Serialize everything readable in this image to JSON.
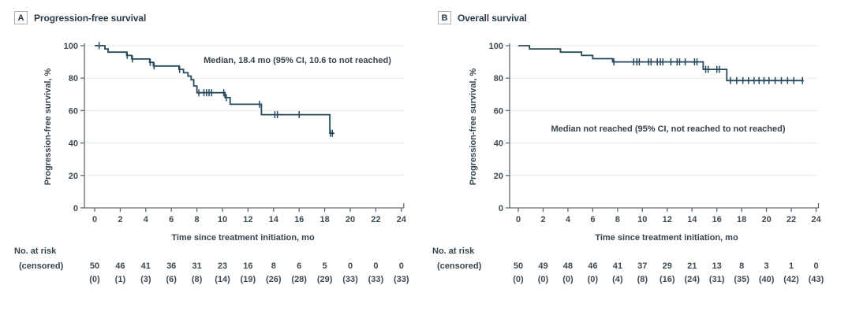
{
  "chart_data": [
    {
      "type": "line",
      "km_step": true,
      "panel_label": "A",
      "title": "Progression-free survival",
      "annotation": "Median, 18.4 mo (95% CI, 10.6 to not reached)",
      "xlabel": "Time since treatment initiation, mo",
      "ylabel": "Progression-free survival, %",
      "xlim": [
        0,
        24
      ],
      "ylim": [
        0,
        100
      ],
      "xticks": [
        0,
        2,
        4,
        6,
        8,
        10,
        12,
        14,
        16,
        18,
        20,
        22,
        24
      ],
      "yticks": [
        0,
        20,
        40,
        60,
        80,
        100
      ],
      "grid": true,
      "legend_position": "none",
      "line_color": "#26485c",
      "steps": [
        [
          0,
          100
        ],
        [
          0.8,
          100
        ],
        [
          0.8,
          98
        ],
        [
          1.05,
          98
        ],
        [
          1.05,
          96
        ],
        [
          2.5,
          96
        ],
        [
          2.5,
          94
        ],
        [
          2.9,
          94
        ],
        [
          2.9,
          91.8
        ],
        [
          4.3,
          91.8
        ],
        [
          4.3,
          89.7
        ],
        [
          4.6,
          89.7
        ],
        [
          4.6,
          87.5
        ],
        [
          6.6,
          87.5
        ],
        [
          6.6,
          85.4
        ],
        [
          6.95,
          85.4
        ],
        [
          6.95,
          83.3
        ],
        [
          7.3,
          83.3
        ],
        [
          7.3,
          81.2
        ],
        [
          7.55,
          81.2
        ],
        [
          7.55,
          79
        ],
        [
          7.75,
          79
        ],
        [
          7.75,
          75.2
        ],
        [
          8.0,
          75.2
        ],
        [
          8.0,
          71
        ],
        [
          10.2,
          71
        ],
        [
          10.2,
          68
        ],
        [
          10.6,
          68
        ],
        [
          10.6,
          63.9
        ],
        [
          13.05,
          63.9
        ],
        [
          13.05,
          57.5
        ],
        [
          18.4,
          57.5
        ],
        [
          18.4,
          46
        ],
        [
          18.75,
          46
        ]
      ],
      "censor_marks": [
        [
          0.35,
          100
        ],
        [
          2.55,
          94
        ],
        [
          2.95,
          91.8
        ],
        [
          4.35,
          89.7
        ],
        [
          4.65,
          87.5
        ],
        [
          6.65,
          85.4
        ],
        [
          8.15,
          71
        ],
        [
          8.55,
          71
        ],
        [
          8.75,
          71
        ],
        [
          8.95,
          71
        ],
        [
          9.15,
          71
        ],
        [
          10.1,
          71
        ],
        [
          10.3,
          68
        ],
        [
          12.9,
          63.9
        ],
        [
          14.1,
          57.5
        ],
        [
          14.3,
          57.5
        ],
        [
          16.0,
          57.5
        ],
        [
          18.45,
          46
        ],
        [
          18.6,
          46
        ]
      ],
      "risk_header": "No. at risk",
      "censored_header": "(censored)",
      "risk_times": [
        0,
        2,
        4,
        6,
        8,
        10,
        12,
        14,
        16,
        18,
        20,
        22,
        24
      ],
      "at_risk": [
        "50",
        "46",
        "41",
        "36",
        "31",
        "23",
        "16",
        "8",
        "6",
        "5",
        "0",
        "0",
        "0"
      ],
      "censored_counts": [
        "(0)",
        "(1)",
        "(3)",
        "(6)",
        "(8)",
        "(14)",
        "(19)",
        "(26)",
        "(28)",
        "(29)",
        "(33)",
        "(33)",
        "(33)"
      ]
    },
    {
      "type": "line",
      "km_step": true,
      "panel_label": "B",
      "title": "Overall survival",
      "annotation": "Median not reached (95% CI, not reached to not reached)",
      "xlabel": "Time since treatment initiation, mo",
      "ylabel": "Progression-free survival, %",
      "xlim": [
        0,
        24
      ],
      "ylim": [
        0,
        100
      ],
      "xticks": [
        0,
        2,
        4,
        6,
        8,
        10,
        12,
        14,
        16,
        18,
        20,
        22,
        24
      ],
      "yticks": [
        0,
        20,
        40,
        60,
        80,
        100
      ],
      "grid": true,
      "legend_position": "none",
      "line_color": "#26485c",
      "steps": [
        [
          0,
          100
        ],
        [
          0.9,
          100
        ],
        [
          0.9,
          98
        ],
        [
          3.4,
          98
        ],
        [
          3.4,
          96
        ],
        [
          5.1,
          96
        ],
        [
          5.1,
          94
        ],
        [
          6.0,
          94
        ],
        [
          6.0,
          92
        ],
        [
          7.6,
          92
        ],
        [
          7.6,
          90
        ],
        [
          14.9,
          90
        ],
        [
          14.9,
          85.4
        ],
        [
          16.8,
          85.4
        ],
        [
          16.8,
          78.5
        ],
        [
          23.0,
          78.5
        ]
      ],
      "censor_marks": [
        [
          7.7,
          90
        ],
        [
          9.3,
          90
        ],
        [
          9.55,
          90
        ],
        [
          9.75,
          90
        ],
        [
          10.5,
          90
        ],
        [
          10.7,
          90
        ],
        [
          11.2,
          90
        ],
        [
          11.45,
          90
        ],
        [
          11.65,
          90
        ],
        [
          12.3,
          90
        ],
        [
          12.8,
          90
        ],
        [
          13.0,
          90
        ],
        [
          13.45,
          90
        ],
        [
          14.2,
          90
        ],
        [
          14.4,
          90
        ],
        [
          15.1,
          85.4
        ],
        [
          15.3,
          85.4
        ],
        [
          16.0,
          85.4
        ],
        [
          16.2,
          85.4
        ],
        [
          17.1,
          78.5
        ],
        [
          17.6,
          78.5
        ],
        [
          18.1,
          78.5
        ],
        [
          18.55,
          78.5
        ],
        [
          19.0,
          78.5
        ],
        [
          19.4,
          78.5
        ],
        [
          19.8,
          78.5
        ],
        [
          20.2,
          78.5
        ],
        [
          20.7,
          78.5
        ],
        [
          21.2,
          78.5
        ],
        [
          21.7,
          78.5
        ],
        [
          22.2,
          78.5
        ],
        [
          22.9,
          78.5
        ]
      ],
      "risk_header": "No. at risk",
      "censored_header": "(censored)",
      "risk_times": [
        0,
        2,
        4,
        6,
        8,
        10,
        12,
        14,
        16,
        18,
        20,
        22,
        24
      ],
      "at_risk": [
        "50",
        "49",
        "48",
        "46",
        "41",
        "37",
        "29",
        "21",
        "13",
        "8",
        "3",
        "1",
        "0"
      ],
      "censored_counts": [
        "(0)",
        "(0)",
        "(0)",
        "(0)",
        "(4)",
        "(8)",
        "(16)",
        "(24)",
        "(31)",
        "(35)",
        "(40)",
        "(42)",
        "(43)"
      ]
    }
  ],
  "colors": {
    "curve": "#26485c",
    "axis": "#5f6b74",
    "grid": "#e9eaec",
    "text": "#35444e"
  }
}
